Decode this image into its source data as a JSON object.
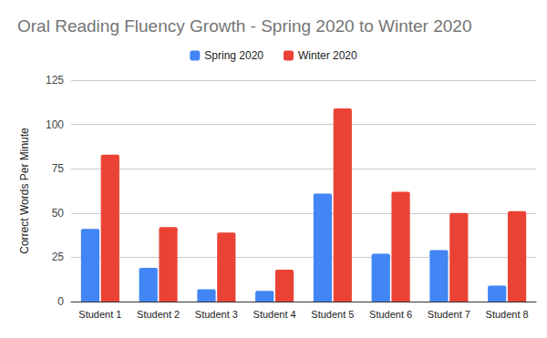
{
  "chart_data": {
    "type": "bar",
    "title": "Oral Reading Fluency Growth - Spring 2020 to Winter 2020",
    "ylabel": "Correct Words Per Minute",
    "categories": [
      "Student 1",
      "Student 2",
      "Student 3",
      "Student 4",
      "Student 5",
      "Student 6",
      "Student 7",
      "Student 8"
    ],
    "series": [
      {
        "name": "Spring 2020",
        "color": "#4285f4",
        "values": [
          41,
          19,
          7,
          6,
          61,
          27,
          29,
          9
        ]
      },
      {
        "name": "Winter 2020",
        "color": "#ea4335",
        "values": [
          83,
          42,
          39,
          18,
          109,
          62,
          50,
          51
        ]
      }
    ],
    "ylim": [
      0,
      125
    ],
    "yticks": [
      0,
      25,
      50,
      75,
      100,
      125
    ],
    "grid": true,
    "legend": "top"
  }
}
